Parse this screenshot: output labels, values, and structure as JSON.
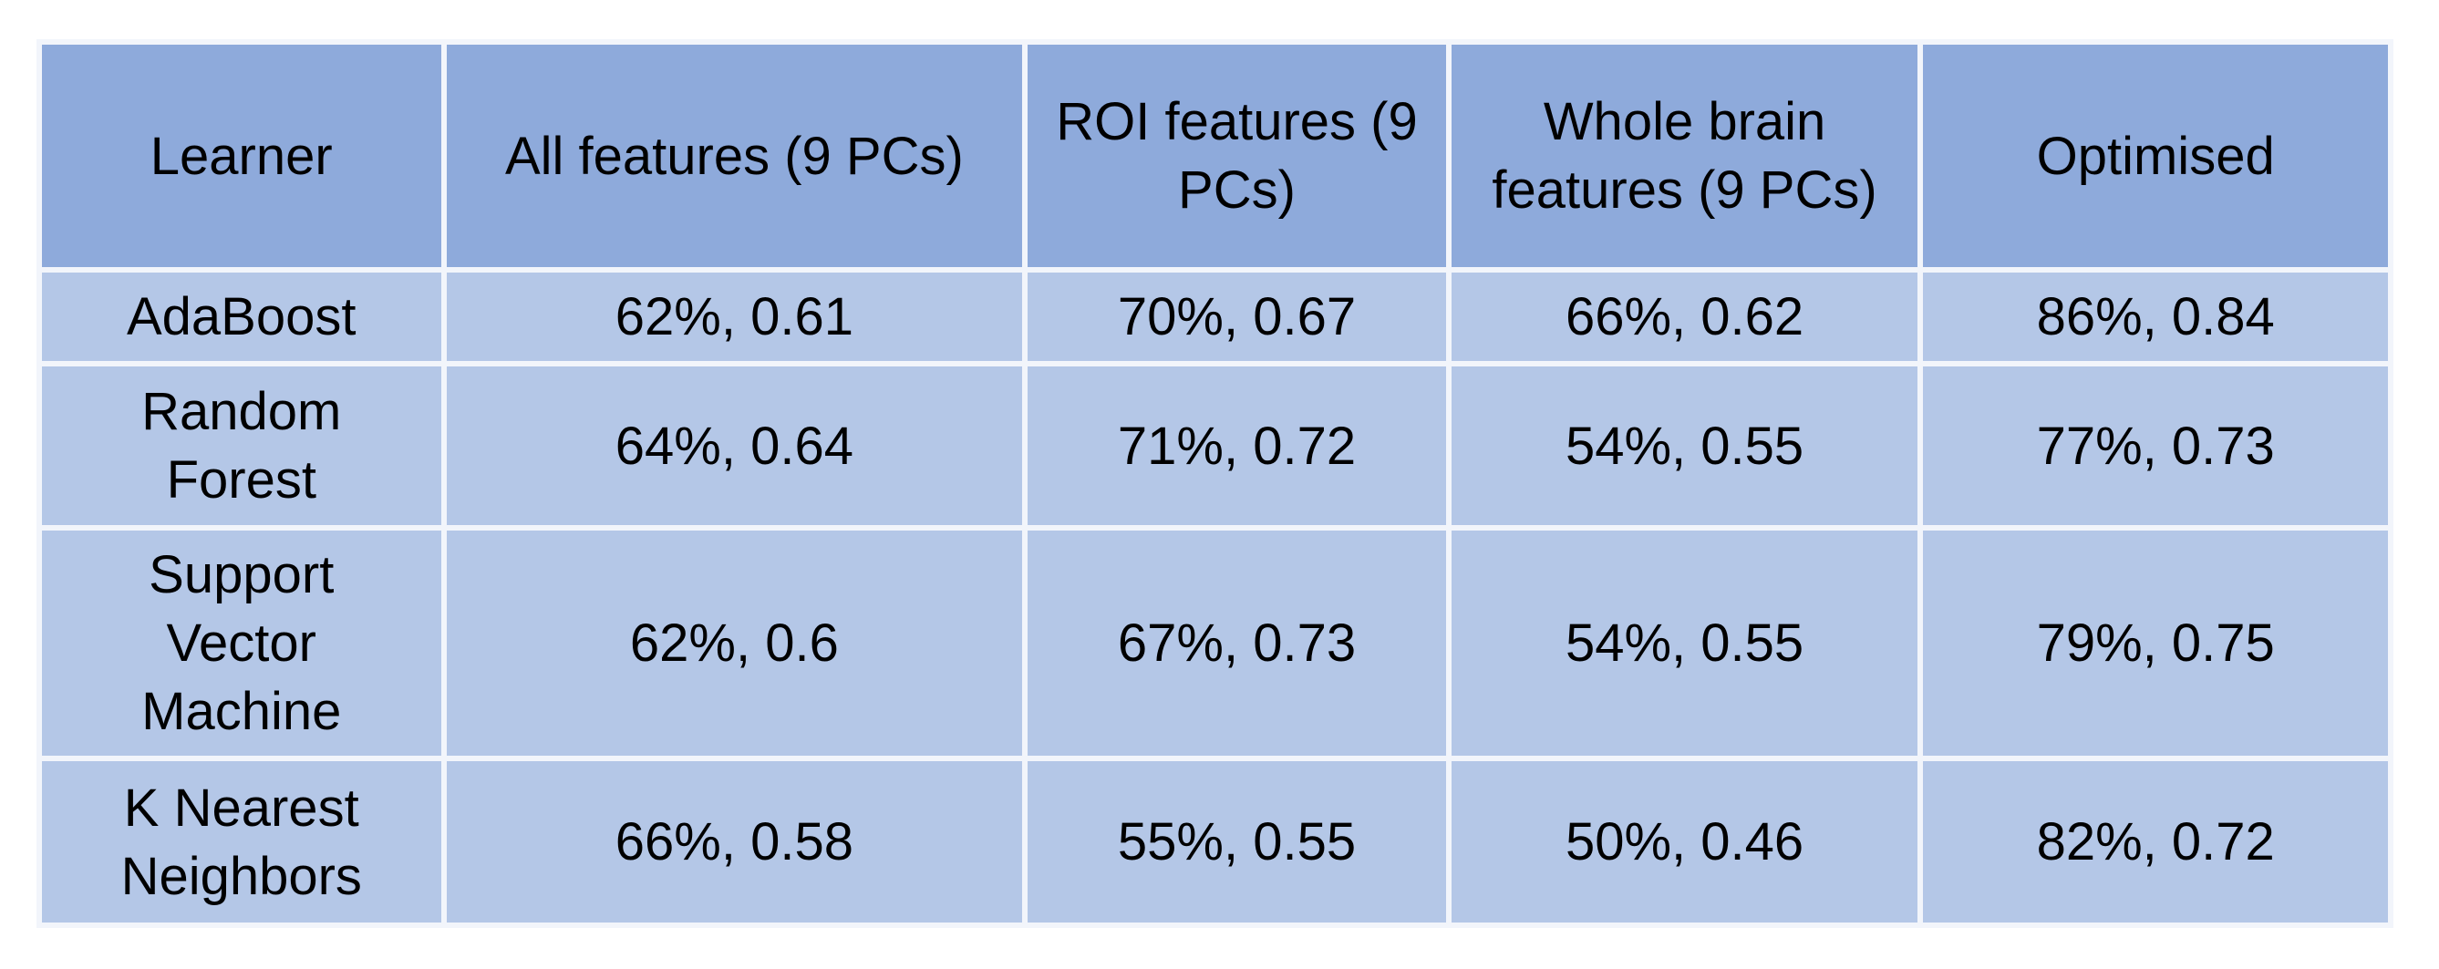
{
  "table": {
    "columns": [
      "Learner",
      "All features (9 PCs)",
      "ROI features (9 PCs)",
      "Whole brain features (9 PCs)",
      "Optimised"
    ],
    "rows": [
      [
        "AdaBoost",
        "62%, 0.61",
        "70%, 0.67",
        "66%, 0.62",
        "86%, 0.84"
      ],
      [
        "Random Forest",
        "64%, 0.64",
        "71%, 0.72",
        "54%, 0.55",
        "77%, 0.73"
      ],
      [
        "Support Vector Machine",
        "62%, 0.6",
        "67%, 0.73",
        "54%, 0.55",
        "79%, 0.75"
      ],
      [
        "K Nearest Neighbors",
        "66%, 0.58",
        "55%, 0.55",
        "50%, 0.46",
        "82%, 0.72"
      ]
    ]
  }
}
